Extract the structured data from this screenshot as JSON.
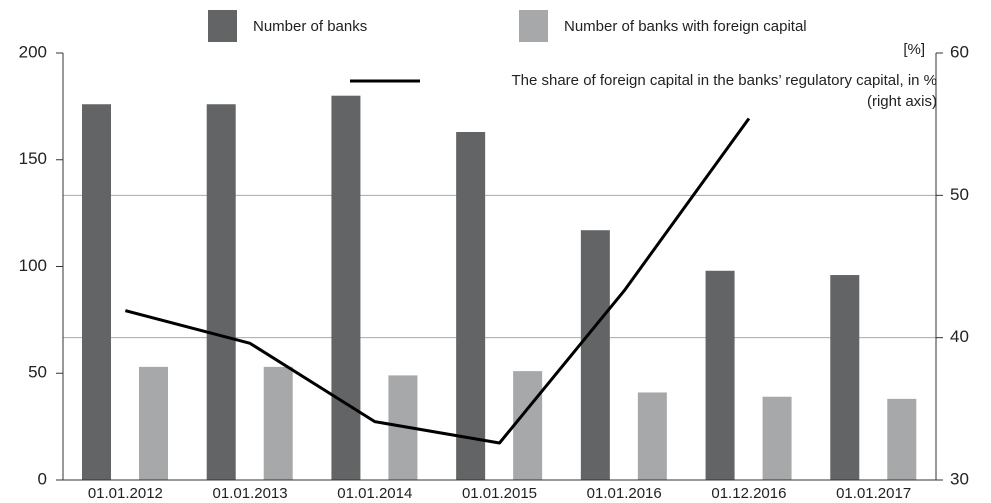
{
  "chart_data": {
    "type": "bar",
    "categories": [
      "01.01.2012",
      "01.01.2013",
      "01.01.2014",
      "01.01.2015",
      "01.01.2016",
      "01.12.2016",
      "01.01.2017"
    ],
    "series": [
      {
        "name": "Number of banks",
        "color": "#636466",
        "values": [
          176,
          176,
          180,
          163,
          117,
          98,
          96
        ]
      },
      {
        "name": "Number of banks with foreign capital",
        "color": "#a7a8aa",
        "values": [
          53,
          53,
          49,
          51,
          41,
          39,
          38
        ]
      },
      {
        "name": "The share of foreign capital in the banks’ regulatory capital, in %\n(right axis)",
        "color": "#000000",
        "type": "line",
        "axis": "y2",
        "values": [
          41.9,
          39.6,
          34.1,
          32.6,
          43.3,
          55.4,
          null
        ]
      }
    ],
    "ylim": [
      0,
      200
    ],
    "yticks": [
      0,
      50,
      100,
      150,
      200
    ],
    "y2lim": [
      30,
      60
    ],
    "y2ticks": [
      30,
      40,
      50,
      60
    ],
    "y2label": "[%]",
    "grid": "y2"
  }
}
